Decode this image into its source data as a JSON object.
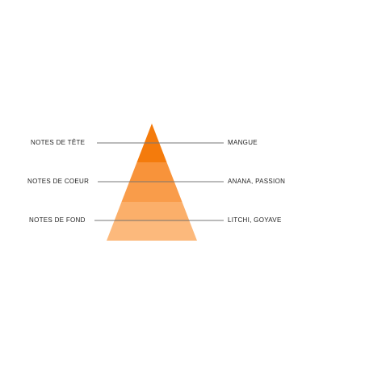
{
  "levels": [
    {
      "label": "NOTES DE TÊTE",
      "notes": "MANGUE"
    },
    {
      "label": "NOTES DE COEUR",
      "notes": "ANANA, PASSION"
    },
    {
      "label": "NOTES DE FOND",
      "notes": "LITCHI, GOYAVE"
    }
  ]
}
